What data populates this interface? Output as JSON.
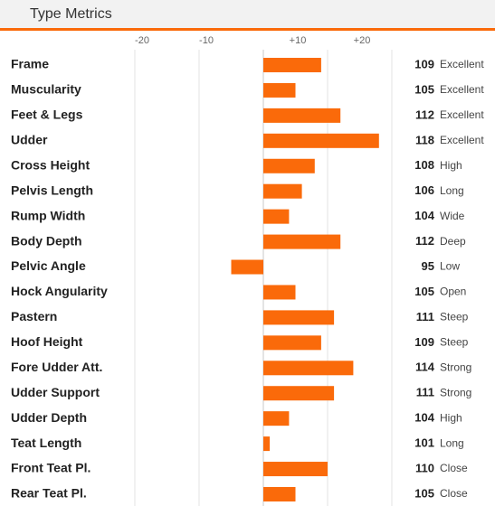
{
  "chart_data": {
    "type": "bar",
    "orientation": "horizontal",
    "title": "Type Metrics",
    "categories": [
      "Frame",
      "Muscularity",
      "Feet & Legs",
      "Udder",
      "Cross Height",
      "Pelvis Length",
      "Rump Width",
      "Body Depth",
      "Pelvic Angle",
      "Hock Angularity",
      "Pastern",
      "Hoof Height",
      "Fore Udder Att.",
      "Udder Support",
      "Udder Depth",
      "Teat Length",
      "Front Teat Pl.",
      "Rear Teat Pl."
    ],
    "values": [
      109,
      105,
      112,
      118,
      108,
      106,
      104,
      112,
      95,
      105,
      111,
      109,
      114,
      111,
      104,
      101,
      110,
      105
    ],
    "descriptors": [
      "Excellent",
      "Excellent",
      "Excellent",
      "Excellent",
      "High",
      "Long",
      "Wide",
      "Deep",
      "Low",
      "Open",
      "Steep",
      "Steep",
      "Strong",
      "Strong",
      "High",
      "Long",
      "Close",
      "Close"
    ],
    "reference": 100,
    "color": "#fa6a0a",
    "xlim": [
      80,
      120
    ],
    "xticks": [
      {
        "value": 80,
        "label": "-20"
      },
      {
        "value": 90,
        "label": "-10"
      },
      {
        "value": 110,
        "label": "+10"
      },
      {
        "value": 120,
        "label": "+20"
      }
    ],
    "grid": true
  }
}
